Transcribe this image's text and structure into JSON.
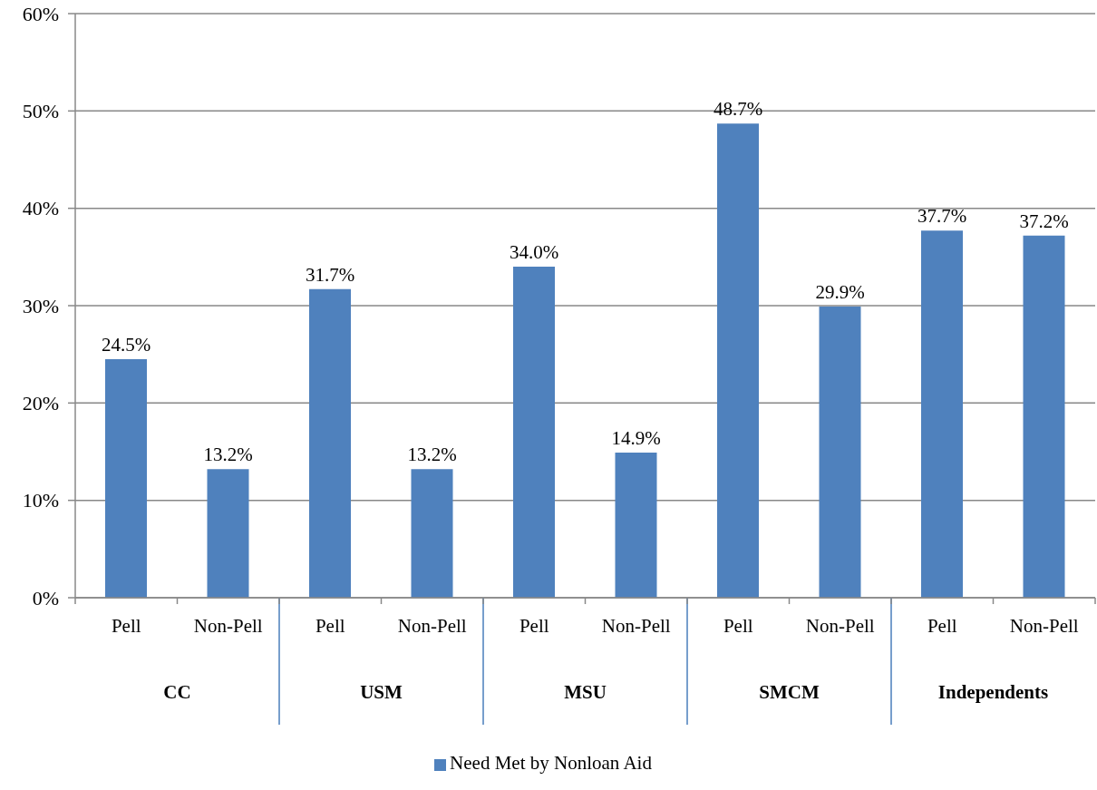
{
  "chart_data": {
    "type": "bar",
    "categories": [
      "Pell",
      "Non-Pell",
      "Pell",
      "Non-Pell",
      "Pell",
      "Non-Pell",
      "Pell",
      "Non-Pell",
      "Pell",
      "Non-Pell"
    ],
    "series": [
      {
        "name": "Need Met by Nonloan Aid",
        "color": "#4f81bd",
        "values": [
          24.5,
          13.2,
          31.7,
          13.2,
          34.0,
          14.9,
          48.7,
          29.9,
          37.7,
          37.2
        ],
        "value_labels": [
          "24.5%",
          "13.2%",
          "31.7%",
          "13.2%",
          "34.0%",
          "14.9%",
          "48.7%",
          "29.9%",
          "37.7%",
          "37.2%"
        ]
      }
    ],
    "ylim": [
      0,
      60
    ],
    "yticks": [
      {
        "value": 0,
        "label": "0%"
      },
      {
        "value": 10,
        "label": "10%"
      },
      {
        "value": 20,
        "label": "20%"
      },
      {
        "value": 30,
        "label": "30%"
      },
      {
        "value": 40,
        "label": "40%"
      },
      {
        "value": 50,
        "label": "50%"
      },
      {
        "value": 60,
        "label": "60%"
      }
    ],
    "grid": "y",
    "legend": "bottom",
    "annotations": [
      "CC",
      "USM",
      "MSU",
      "SMCM",
      "Independents"
    ]
  }
}
